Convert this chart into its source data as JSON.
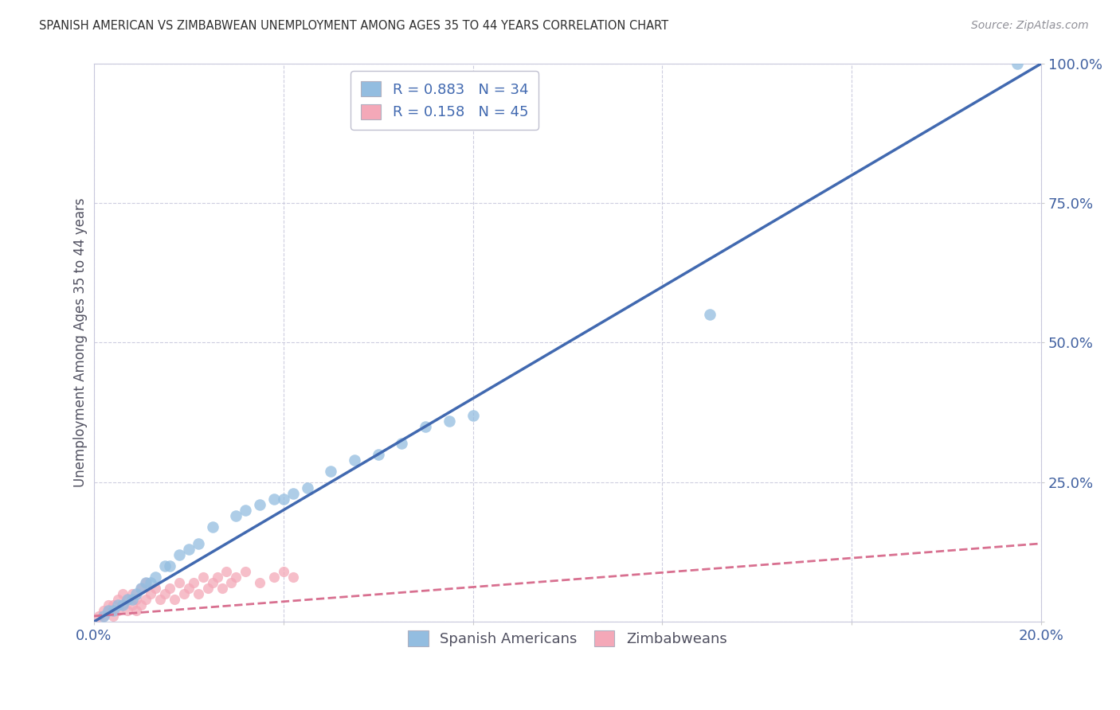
{
  "title": "SPANISH AMERICAN VS ZIMBABWEAN UNEMPLOYMENT AMONG AGES 35 TO 44 YEARS CORRELATION CHART",
  "source": "Source: ZipAtlas.com",
  "xlabel": "",
  "ylabel": "Unemployment Among Ages 35 to 44 years",
  "xlim": [
    0.0,
    0.2
  ],
  "ylim": [
    0.0,
    1.0
  ],
  "xticks": [
    0.0,
    0.04,
    0.08,
    0.12,
    0.16,
    0.2
  ],
  "xticklabels": [
    "0.0%",
    "",
    "",
    "",
    "",
    "20.0%"
  ],
  "yticks": [
    0.0,
    0.25,
    0.5,
    0.75,
    1.0
  ],
  "yticklabels": [
    "",
    "25.0%",
    "50.0%",
    "75.0%",
    "100.0%"
  ],
  "blue_R": 0.883,
  "blue_N": 34,
  "pink_R": 0.158,
  "pink_N": 45,
  "blue_color": "#93BDE0",
  "pink_color": "#F4A8B8",
  "blue_line_color": "#4169B0",
  "pink_line_color": "#D87090",
  "background_color": "#ffffff",
  "grid_color": "#C8C8DC",
  "legend_R_color": "#4169B0",
  "blue_line_x": [
    0.0,
    0.2
  ],
  "blue_line_y": [
    0.0,
    1.0
  ],
  "pink_line_x": [
    0.0,
    0.2
  ],
  "pink_line_y": [
    0.01,
    0.14
  ],
  "blue_scatter_x": [
    0.002,
    0.003,
    0.004,
    0.005,
    0.006,
    0.007,
    0.008,
    0.009,
    0.01,
    0.011,
    0.012,
    0.013,
    0.015,
    0.016,
    0.018,
    0.02,
    0.022,
    0.025,
    0.03,
    0.032,
    0.035,
    0.038,
    0.04,
    0.042,
    0.045,
    0.05,
    0.055,
    0.06,
    0.065,
    0.07,
    0.075,
    0.08,
    0.13,
    0.195
  ],
  "blue_scatter_y": [
    0.01,
    0.02,
    0.02,
    0.03,
    0.03,
    0.04,
    0.04,
    0.05,
    0.06,
    0.07,
    0.07,
    0.08,
    0.1,
    0.1,
    0.12,
    0.13,
    0.14,
    0.17,
    0.19,
    0.2,
    0.21,
    0.22,
    0.22,
    0.23,
    0.24,
    0.27,
    0.29,
    0.3,
    0.32,
    0.35,
    0.36,
    0.37,
    0.55,
    1.0
  ],
  "pink_scatter_x": [
    0.001,
    0.002,
    0.002,
    0.003,
    0.003,
    0.004,
    0.004,
    0.005,
    0.005,
    0.006,
    0.006,
    0.007,
    0.007,
    0.008,
    0.008,
    0.009,
    0.009,
    0.01,
    0.01,
    0.011,
    0.011,
    0.012,
    0.013,
    0.014,
    0.015,
    0.016,
    0.017,
    0.018,
    0.019,
    0.02,
    0.021,
    0.022,
    0.023,
    0.024,
    0.025,
    0.026,
    0.027,
    0.028,
    0.029,
    0.03,
    0.032,
    0.035,
    0.038,
    0.04,
    0.042
  ],
  "pink_scatter_y": [
    0.01,
    0.01,
    0.02,
    0.02,
    0.03,
    0.01,
    0.03,
    0.02,
    0.04,
    0.03,
    0.05,
    0.02,
    0.04,
    0.03,
    0.05,
    0.02,
    0.04,
    0.03,
    0.06,
    0.04,
    0.07,
    0.05,
    0.06,
    0.04,
    0.05,
    0.06,
    0.04,
    0.07,
    0.05,
    0.06,
    0.07,
    0.05,
    0.08,
    0.06,
    0.07,
    0.08,
    0.06,
    0.09,
    0.07,
    0.08,
    0.09,
    0.07,
    0.08,
    0.09,
    0.08
  ]
}
